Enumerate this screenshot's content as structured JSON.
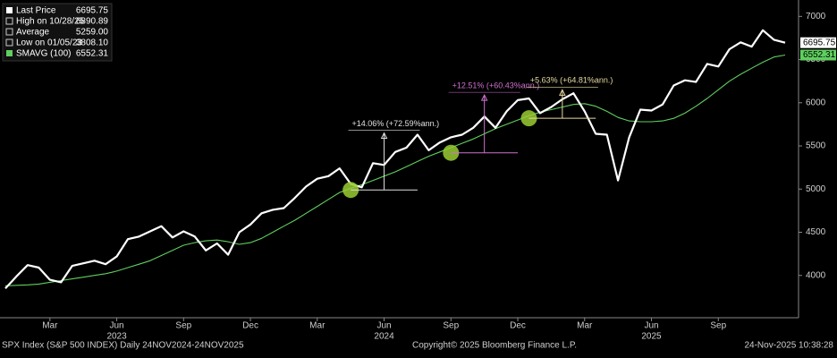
{
  "chart_data": {
    "type": "line",
    "categories": [
      null,
      null,
      null,
      null,
      "Mar",
      null,
      null,
      null,
      null,
      null,
      "Jun",
      null,
      null,
      null,
      null,
      null,
      "Sep",
      null,
      null,
      null,
      null,
      null,
      "Dec",
      null,
      null,
      null,
      null,
      null,
      "Mar",
      null,
      null,
      null,
      null,
      null,
      "Jun",
      null,
      null,
      null,
      null,
      null,
      "Sep",
      null,
      null,
      null,
      null,
      null,
      "Dec",
      null,
      null,
      null,
      null,
      null,
      "Mar",
      null,
      null,
      null,
      null,
      null,
      "Jun",
      null,
      null,
      null,
      null,
      null,
      "Sep",
      null,
      null,
      null,
      null,
      null,
      null
    ],
    "year_categories": [
      null,
      null,
      null,
      null,
      null,
      null,
      null,
      null,
      null,
      null,
      "2023",
      null,
      null,
      null,
      null,
      null,
      null,
      null,
      null,
      null,
      null,
      null,
      null,
      null,
      null,
      null,
      null,
      null,
      null,
      null,
      null,
      null,
      null,
      null,
      "2024",
      null,
      null,
      null,
      null,
      null,
      null,
      null,
      null,
      null,
      null,
      null,
      null,
      null,
      null,
      null,
      null,
      null,
      null,
      null,
      null,
      null,
      null,
      null,
      "2025",
      null,
      null,
      null,
      null,
      null,
      null,
      null,
      null,
      null,
      null,
      null,
      null
    ],
    "series": [
      {
        "name": "Last Price",
        "color": "#ffffff",
        "values": [
          3850,
          3990,
          4120,
          4090,
          3950,
          3920,
          4110,
          4140,
          4170,
          4130,
          4220,
          4420,
          4450,
          4510,
          4570,
          4440,
          4510,
          4450,
          4290,
          4370,
          4240,
          4500,
          4590,
          4720,
          4760,
          4780,
          4900,
          5030,
          5120,
          5150,
          5240,
          5060,
          5020,
          5300,
          5280,
          5430,
          5480,
          5630,
          5450,
          5540,
          5600,
          5630,
          5710,
          5840,
          5710,
          5900,
          6030,
          6050,
          5880,
          5950,
          6040,
          6110,
          5900,
          5640,
          5630,
          5100,
          5600,
          5920,
          5910,
          5980,
          6200,
          6260,
          6240,
          6450,
          6420,
          6620,
          6700,
          6650,
          6840,
          6730,
          6695.75
        ]
      },
      {
        "name": "SMAVG (100)",
        "color": "#5fcf5f",
        "values": [
          3880,
          3885,
          3890,
          3900,
          3920,
          3940,
          3960,
          3980,
          4000,
          4020,
          4050,
          4090,
          4130,
          4170,
          4230,
          4290,
          4350,
          4380,
          4400,
          4410,
          4390,
          4360,
          4380,
          4430,
          4500,
          4570,
          4640,
          4720,
          4800,
          4880,
          4960,
          5010,
          5050,
          5100,
          5150,
          5200,
          5260,
          5320,
          5380,
          5430,
          5480,
          5530,
          5580,
          5640,
          5700,
          5750,
          5800,
          5850,
          5890,
          5920,
          5950,
          5980,
          5990,
          5960,
          5900,
          5830,
          5790,
          5780,
          5780,
          5790,
          5820,
          5880,
          5960,
          6050,
          6150,
          6250,
          6330,
          6400,
          6470,
          6530,
          6552.31
        ]
      }
    ],
    "ylim": [
      3510,
      7190
    ],
    "yticks": [
      4000,
      4500,
      5000,
      5500,
      6000,
      6500,
      7000
    ],
    "stats": [
      {
        "name": "Last Price",
        "value_label": "6695.75"
      },
      {
        "name": "High on 10/28/25",
        "value_label": "6890.89"
      },
      {
        "name": "Average",
        "value_label": "5259.00"
      },
      {
        "name": "Low on 01/05/23",
        "value_label": "3808.10"
      },
      {
        "name": "SMAVG (100)",
        "value_label": "6552.31"
      }
    ],
    "annotations": [
      {
        "text": "+14.06% (+72.59%ann.)",
        "color": "#e0e0e0",
        "index": 31,
        "start_value": 4990,
        "end_value": 5650
      },
      {
        "text": "+12.51% (+60.43%ann.)",
        "color": "#d070d0",
        "index": 40,
        "start_value": 5420,
        "end_value": 6090
      },
      {
        "text": "+5.63% (+64.81%ann.)",
        "color": "#e8d9a0",
        "index": 47,
        "start_value": 5820,
        "end_value": 6150
      }
    ],
    "footer": {
      "left": "SPX Index (S&P 500 INDEX) Daily 24NOV2024-24NOV2025",
      "center": "Copyright© 2025 Bloomberg Finance L.P.",
      "right": "24-Nov-2025 10:38:28"
    }
  }
}
